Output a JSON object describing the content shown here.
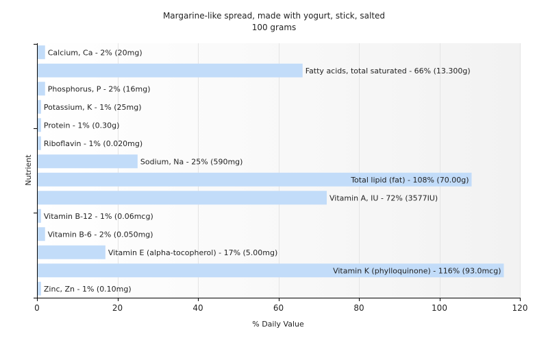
{
  "chart_data": {
    "type": "bar",
    "orientation": "horizontal",
    "title": "Margarine-like spread, made with yogurt, stick, salted",
    "subtitle": "100 grams",
    "xlabel": "% Daily Value",
    "ylabel": "Nutrient",
    "xlim": [
      0,
      120
    ],
    "xticks": [
      0,
      20,
      40,
      60,
      80,
      100,
      120
    ],
    "grid": true,
    "bar_color": "#c2dcf9",
    "categories": [
      "Calcium, Ca",
      "Fatty acids, total saturated",
      "Phosphorus, P",
      "Potassium, K",
      "Protein",
      "Riboflavin",
      "Sodium, Na",
      "Total lipid (fat)",
      "Vitamin A, IU",
      "Vitamin B-12",
      "Vitamin B-6",
      "Vitamin E (alpha-tocopherol)",
      "Vitamin K (phylloquinone)",
      "Zinc, Zn"
    ],
    "values": [
      2,
      66,
      2,
      1,
      1,
      1,
      25,
      108,
      72,
      1,
      2,
      17,
      116,
      1
    ],
    "labels": [
      "Calcium, Ca - 2% (20mg)",
      "Fatty acids, total saturated - 66% (13.300g)",
      "Phosphorus, P - 2% (16mg)",
      "Potassium, K - 1% (25mg)",
      "Protein - 1% (0.30g)",
      "Riboflavin - 1% (0.020mg)",
      "Sodium, Na - 25% (590mg)",
      "Total lipid (fat) - 108% (70.00g)",
      "Vitamin A, IU - 72% (3577IU)",
      "Vitamin B-12 - 1% (0.06mcg)",
      "Vitamin B-6 - 2% (0.050mg)",
      "Vitamin E (alpha-tocopherol) - 17% (5.00mg)",
      "Vitamin K (phylloquinone) - 116% (93.0mcg)",
      "Zinc, Zn - 1% (0.10mg)"
    ]
  }
}
